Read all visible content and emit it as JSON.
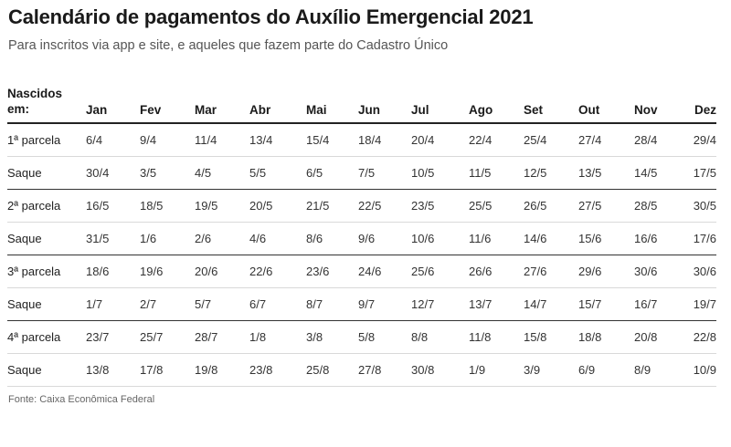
{
  "header": {
    "title": "Calendário de pagamentos do Auxílio Emergencial 2021",
    "subtitle": "Para inscritos via app e site, e aqueles que fazem parte do Cadastro Único"
  },
  "table": {
    "label_header_line1": "Nascidos",
    "label_header_line2": "em:",
    "months": [
      "Jan",
      "Fev",
      "Mar",
      "Abr",
      "Mai",
      "Jun",
      "Jul",
      "Ago",
      "Set",
      "Out",
      "Nov",
      "Dez"
    ],
    "rows": [
      {
        "label": "1ª parcela",
        "kind": "parcela",
        "values": [
          "6/4",
          "9/4",
          "11/4",
          "13/4",
          "15/4",
          "18/4",
          "20/4",
          "22/4",
          "25/4",
          "27/4",
          "28/4",
          "29/4"
        ]
      },
      {
        "label": "Saque",
        "kind": "saque",
        "values": [
          "30/4",
          "3/5",
          "4/5",
          "5/5",
          "6/5",
          "7/5",
          "10/5",
          "11/5",
          "12/5",
          "13/5",
          "14/5",
          "17/5"
        ]
      },
      {
        "label": "2ª parcela",
        "kind": "parcela",
        "values": [
          "16/5",
          "18/5",
          "19/5",
          "20/5",
          "21/5",
          "22/5",
          "23/5",
          "25/5",
          "26/5",
          "27/5",
          "28/5",
          "30/5"
        ]
      },
      {
        "label": "Saque",
        "kind": "saque",
        "values": [
          "31/5",
          "1/6",
          "2/6",
          "4/6",
          "8/6",
          "9/6",
          "10/6",
          "11/6",
          "14/6",
          "15/6",
          "16/6",
          "17/6"
        ]
      },
      {
        "label": "3ª parcela",
        "kind": "parcela",
        "values": [
          "18/6",
          "19/6",
          "20/6",
          "22/6",
          "23/6",
          "24/6",
          "25/6",
          "26/6",
          "27/6",
          "29/6",
          "30/6",
          "30/6"
        ]
      },
      {
        "label": "Saque",
        "kind": "saque",
        "values": [
          "1/7",
          "2/7",
          "5/7",
          "6/7",
          "8/7",
          "9/7",
          "12/7",
          "13/7",
          "14/7",
          "15/7",
          "16/7",
          "19/7"
        ]
      },
      {
        "label": "4ª parcela",
        "kind": "parcela",
        "values": [
          "23/7",
          "25/7",
          "28/7",
          "1/8",
          "3/8",
          "5/8",
          "8/8",
          "11/8",
          "15/8",
          "18/8",
          "20/8",
          "22/8"
        ]
      },
      {
        "label": "Saque",
        "kind": "saque",
        "values": [
          "13/8",
          "17/8",
          "19/8",
          "23/8",
          "25/8",
          "27/8",
          "30/8",
          "1/9",
          "3/9",
          "6/9",
          "8/9",
          "10/9"
        ]
      }
    ]
  },
  "footer": {
    "source": "Fonte: Caixa Econômica Federal"
  }
}
